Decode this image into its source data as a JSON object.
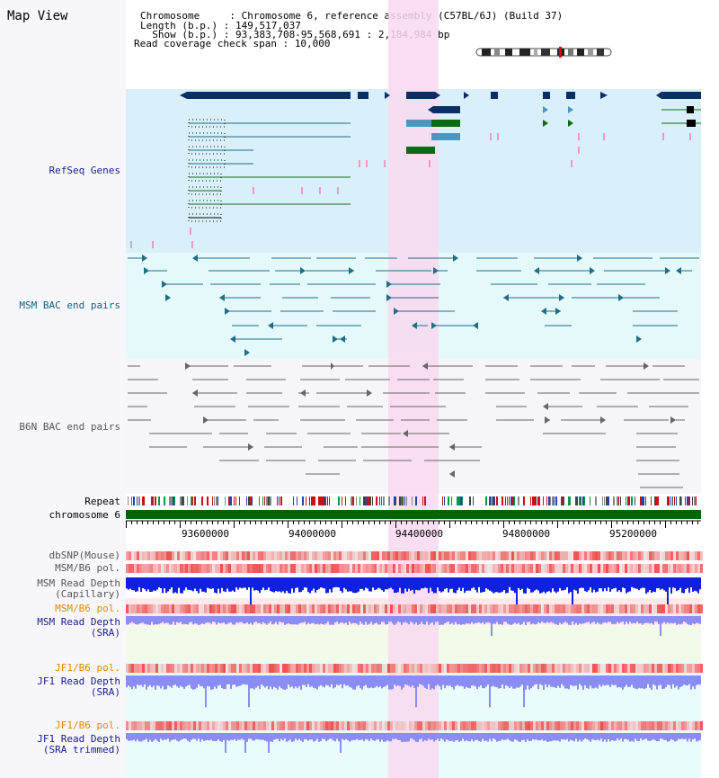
{
  "title": "Map View",
  "header": {
    "chromosome_label": "Chromosome     : ",
    "chromosome_value": "Chromosome 6, reference assembly (C57BL/6J) (Build 37)",
    "length_label": "Length (b.p.) : ",
    "length_value": "149,517,037",
    "show_label": "  Show (b.p.) : ",
    "show_value": "93,383,708-95,568,691 : 2,184,984 bp",
    "coverage_label": "Read coverage check span : ",
    "coverage_value": "10,000"
  },
  "tracks": {
    "refseq": "RefSeq Genes",
    "msm_bac": "MSM BAC end pairs",
    "b6n_bac": "B6N BAC end pairs",
    "repeat": "Repeat",
    "chromosome": "chromosome 6",
    "dbsnp": "dbSNP(Mouse)",
    "msm_b6_pol_1": "MSM/B6 pol.",
    "msm_depth_cap_1": "MSM Read Depth",
    "msm_depth_cap_2": "(Capillary)",
    "msm_b6_pol_2": "MSM/B6 pol.",
    "msm_depth_sra_1": "MSM Read Depth",
    "msm_depth_sra_2": "(SRA)",
    "jf1_b6_pol_1": "JF1/B6 pol.",
    "jf1_depth_sra_1": "JF1 Read Depth",
    "jf1_depth_sra_2": "(SRA)",
    "jf1_b6_pol_2": "JF1/B6 pol.",
    "jf1_depth_trim_1": "JF1 Read Depth",
    "jf1_depth_trim_2": "(SRA trimmed)"
  },
  "axis": {
    "ticks": [
      "93600000",
      "94000000",
      "94400000",
      "94800000",
      "95200000"
    ]
  },
  "colors": {
    "refseq_bg": "#d9effa",
    "msm_bg": "#e5f9fb",
    "b6n_bg": "#f5f5fa",
    "highlight": "#f9d9f0",
    "gene_dark": "#0a2e66",
    "gene_green": "#0a6b14",
    "gene_blue": "#4a98c0",
    "msm_line": "#1f6e88",
    "b6n_line": "#666666",
    "chrom_bar": "#006400",
    "depth_dark": "#1020e0",
    "depth_light": "#8c8cf5",
    "label_navy": "#1a1a8c",
    "label_teal": "#12607a",
    "label_orange": "#e08a00",
    "label_gray": "#555555"
  }
}
